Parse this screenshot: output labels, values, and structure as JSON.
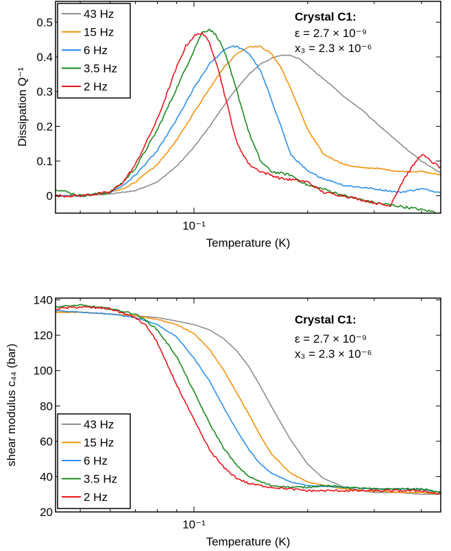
{
  "colors": {
    "43 Hz": "#8c8c8c",
    "15 Hz": "#f5900a",
    "6 Hz": "#2a8ee8",
    "3.5 Hz": "#18881c",
    "2 Hz": "#e8121a"
  },
  "chart_data": [
    {
      "type": "line",
      "x_scale": "log",
      "xlim": [
        0.043,
        0.45
      ],
      "ylim": [
        -0.05,
        0.56
      ],
      "xlabel": "Temperature (K)",
      "ylabel": "Dissipation Q⁻¹",
      "x_ticks": [
        {
          "value": 0.1,
          "label": "10⁻¹"
        }
      ],
      "y_ticks": [
        {
          "value": 0,
          "label": "0"
        },
        {
          "value": 0.1,
          "label": "0.1"
        },
        {
          "value": 0.2,
          "label": "0.2"
        },
        {
          "value": 0.3,
          "label": "0.3"
        },
        {
          "value": 0.4,
          "label": "0.4"
        },
        {
          "value": 0.5,
          "label": "0.5"
        }
      ],
      "legend": "top-left",
      "annotation": {
        "title": "Crystal C1:",
        "line1": "ε = 2.7 × 10⁻⁹",
        "line2": "x₃ = 2.3 × 10⁻⁶"
      },
      "series": [
        {
          "name": "43 Hz",
          "x": [
            0.043,
            0.05,
            0.06,
            0.07,
            0.08,
            0.09,
            0.1,
            0.11,
            0.12,
            0.13,
            0.14,
            0.15,
            0.16,
            0.17,
            0.18,
            0.19,
            0.2,
            0.21,
            0.23,
            0.25,
            0.28,
            0.3,
            0.33,
            0.36,
            0.4,
            0.45
          ],
          "y": [
            0.0,
            0.0,
            0.005,
            0.015,
            0.04,
            0.085,
            0.14,
            0.2,
            0.26,
            0.31,
            0.35,
            0.38,
            0.395,
            0.405,
            0.405,
            0.395,
            0.375,
            0.355,
            0.32,
            0.285,
            0.245,
            0.215,
            0.175,
            0.14,
            0.1,
            0.065
          ]
        },
        {
          "name": "15 Hz",
          "x": [
            0.043,
            0.05,
            0.06,
            0.065,
            0.07,
            0.08,
            0.09,
            0.1,
            0.11,
            0.12,
            0.13,
            0.14,
            0.15,
            0.16,
            0.17,
            0.18,
            0.19,
            0.2,
            0.22,
            0.25,
            0.28,
            0.3,
            0.35,
            0.4,
            0.45
          ],
          "y": [
            0.0,
            0.0,
            0.01,
            0.02,
            0.04,
            0.09,
            0.16,
            0.24,
            0.31,
            0.37,
            0.41,
            0.43,
            0.43,
            0.41,
            0.37,
            0.31,
            0.25,
            0.19,
            0.12,
            0.09,
            0.08,
            0.08,
            0.07,
            0.07,
            0.06
          ]
        },
        {
          "name": "6 Hz",
          "x": [
            0.043,
            0.05,
            0.06,
            0.065,
            0.07,
            0.08,
            0.09,
            0.1,
            0.11,
            0.12,
            0.125,
            0.13,
            0.14,
            0.15,
            0.16,
            0.17,
            0.18,
            0.2,
            0.22,
            0.25,
            0.3,
            0.35,
            0.4,
            0.45
          ],
          "y": [
            0.0,
            0.0,
            0.01,
            0.03,
            0.06,
            0.13,
            0.22,
            0.31,
            0.38,
            0.42,
            0.43,
            0.43,
            0.41,
            0.36,
            0.28,
            0.2,
            0.12,
            0.07,
            0.05,
            0.03,
            0.02,
            0.01,
            0.02,
            0.01
          ]
        },
        {
          "name": "3.5 Hz",
          "x": [
            0.043,
            0.05,
            0.06,
            0.065,
            0.07,
            0.08,
            0.09,
            0.1,
            0.105,
            0.11,
            0.115,
            0.12,
            0.13,
            0.14,
            0.15,
            0.16,
            0.18,
            0.2,
            0.22,
            0.25,
            0.3,
            0.35,
            0.4,
            0.45
          ],
          "y": [
            0.02,
            0.0,
            0.01,
            0.04,
            0.08,
            0.19,
            0.31,
            0.42,
            0.47,
            0.48,
            0.46,
            0.42,
            0.3,
            0.18,
            0.1,
            0.07,
            0.06,
            0.03,
            0.02,
            0.0,
            -0.02,
            -0.03,
            -0.04,
            -0.05
          ]
        },
        {
          "name": "2 Hz",
          "x": [
            0.043,
            0.05,
            0.06,
            0.065,
            0.07,
            0.08,
            0.09,
            0.095,
            0.1,
            0.105,
            0.11,
            0.115,
            0.12,
            0.13,
            0.14,
            0.15,
            0.17,
            0.2,
            0.22,
            0.25,
            0.3,
            0.33,
            0.36,
            0.4,
            0.45
          ],
          "y": [
            0.0,
            0.0,
            0.01,
            0.04,
            0.09,
            0.22,
            0.37,
            0.43,
            0.46,
            0.47,
            0.44,
            0.38,
            0.3,
            0.15,
            0.09,
            0.07,
            0.05,
            0.04,
            0.01,
            0.0,
            -0.02,
            -0.03,
            0.05,
            0.12,
            0.08
          ]
        }
      ]
    },
    {
      "type": "line",
      "x_scale": "log",
      "xlim": [
        0.043,
        0.45
      ],
      "ylim": [
        20,
        141
      ],
      "xlabel": "Temperature (K)",
      "ylabel": "shear modulus c₄₄ (bar)",
      "x_ticks": [
        {
          "value": 0.1,
          "label": "10⁻¹"
        }
      ],
      "y_ticks": [
        {
          "value": 20,
          "label": "20"
        },
        {
          "value": 40,
          "label": "40"
        },
        {
          "value": 60,
          "label": "60"
        },
        {
          "value": 80,
          "label": "80"
        },
        {
          "value": 100,
          "label": "100"
        },
        {
          "value": 120,
          "label": "120"
        },
        {
          "value": 140,
          "label": "140"
        }
      ],
      "legend": "bottom-left",
      "annotation": {
        "title": "Crystal C1:",
        "line1": "ε = 2.7 × 10⁻⁹",
        "line2": "x₃ = 2.3 × 10⁻⁶"
      },
      "series": [
        {
          "name": "43 Hz",
          "x": [
            0.043,
            0.05,
            0.06,
            0.07,
            0.08,
            0.09,
            0.1,
            0.11,
            0.12,
            0.13,
            0.14,
            0.15,
            0.16,
            0.18,
            0.2,
            0.22,
            0.25,
            0.28,
            0.3,
            0.35,
            0.4,
            0.45
          ],
          "y": [
            133,
            133,
            132,
            131,
            130,
            128,
            126,
            123,
            118,
            111,
            102,
            91,
            80,
            61,
            47,
            39,
            34,
            32,
            31,
            31,
            30,
            30
          ]
        },
        {
          "name": "15 Hz",
          "x": [
            0.043,
            0.05,
            0.06,
            0.07,
            0.08,
            0.09,
            0.1,
            0.11,
            0.12,
            0.13,
            0.14,
            0.15,
            0.16,
            0.18,
            0.2,
            0.22,
            0.25,
            0.28,
            0.3,
            0.35,
            0.4,
            0.45
          ],
          "y": [
            133,
            133,
            132,
            131,
            129,
            126,
            121,
            112,
            100,
            87,
            75,
            63,
            53,
            42,
            37,
            35,
            33,
            32,
            32,
            31,
            31,
            30
          ]
        },
        {
          "name": "6 Hz",
          "x": [
            0.043,
            0.05,
            0.06,
            0.07,
            0.08,
            0.09,
            0.1,
            0.11,
            0.12,
            0.13,
            0.14,
            0.15,
            0.16,
            0.18,
            0.2,
            0.25,
            0.3,
            0.35,
            0.4,
            0.45
          ],
          "y": [
            134,
            133,
            132,
            130,
            126,
            119,
            107,
            94,
            79,
            66,
            55,
            47,
            42,
            37,
            35,
            34,
            33,
            33,
            33,
            31
          ]
        },
        {
          "name": "3.5 Hz",
          "x": [
            0.043,
            0.05,
            0.06,
            0.07,
            0.075,
            0.08,
            0.09,
            0.1,
            0.11,
            0.12,
            0.13,
            0.14,
            0.15,
            0.16,
            0.18,
            0.2,
            0.22,
            0.25,
            0.3,
            0.35,
            0.4,
            0.45
          ],
          "y": [
            136,
            137,
            135,
            132,
            128,
            123,
            108,
            88,
            70,
            56,
            46,
            40,
            37,
            35,
            34,
            34,
            35,
            34,
            33,
            33,
            33,
            31
          ]
        },
        {
          "name": "2 Hz",
          "x": [
            0.043,
            0.05,
            0.06,
            0.07,
            0.075,
            0.08,
            0.085,
            0.09,
            0.1,
            0.11,
            0.12,
            0.13,
            0.14,
            0.16,
            0.18,
            0.2,
            0.25,
            0.3,
            0.35,
            0.4,
            0.45
          ],
          "y": [
            135,
            136,
            135,
            130,
            125,
            116,
            103,
            92,
            72,
            55,
            45,
            39,
            36,
            34,
            33,
            32,
            32,
            32,
            32,
            32,
            30
          ]
        }
      ]
    }
  ]
}
